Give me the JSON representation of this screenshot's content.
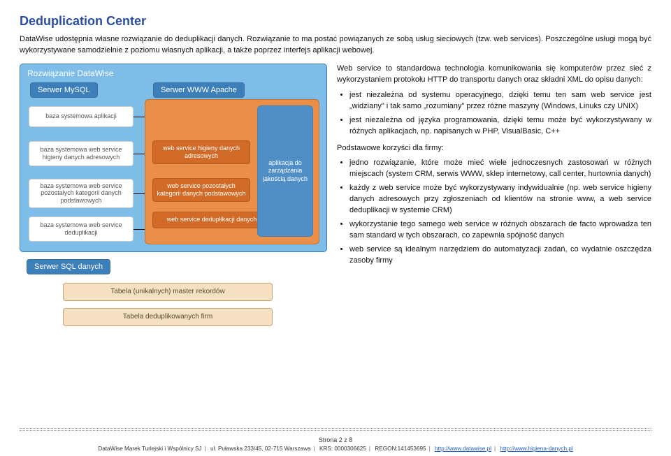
{
  "title": "Deduplication Center",
  "intro1": "DataWise udostępnia własne rozwiązanie do deduplikacji danych. Rozwiązanie to ma postać powiązanych ze sobą usług sieciowych (tzw. web services). Poszczególne usługi mogą być wykorzystywane samodzielnie z poziomu własnych aplikacji, a także poprzez interfejs aplikacji webowej.",
  "diagram": {
    "dw_title": "Rozwiązanie DataWise",
    "srv_mysql": "Serwer MySQL",
    "srv_apache": "Serwer WWW Apache",
    "wb1": "baza systemowa aplikacji",
    "wb2": "baza systemowa web service higieny danych adresowych",
    "wb3": "baza systemowa web service pozostałych kategorii danych podstawowych",
    "wb4": "baza systemowa web service deduplikacji",
    "ob1": "web service higieny danych adresowych",
    "ob2": "web service pozostałych kategorii danych podstawowych",
    "ob3": "web service deduplikacji danych",
    "app": "aplikacja do zarządzania jakością danych",
    "srv_sql": "Serwer SQL danych",
    "tab1": "Tabela (unikalnych) master rekordów",
    "tab2": "Tabela deduplikowanych firm"
  },
  "para_ws": "Web service to standardowa technologia komunikowania się komputerów przez sieć z wykorzystaniem protokołu HTTP do transportu danych oraz składni XML do opisu danych:",
  "bul_ws": [
    "jest niezależna od systemu operacyjnego, dzięki temu ten sam web service jest „widziany\" i tak samo „rozumiany\" przez różne maszyny (Windows, Linuks czy UNIX)",
    "jest niezależna od języka programowania, dzięki temu może być wykorzystywany w różnych aplikacjach, np. napisanych w PHP, VisualBasic, C++"
  ],
  "para_ben": "Podstawowe korzyści dla firmy:",
  "bul_ben": [
    "jedno rozwiązanie, które może mieć wiele jednoczesnych zastosowań w różnych miejscach (system CRM, serwis WWW, sklep internetowy, call center, hurtownia danych)",
    "każdy z web service może być wykorzystywany indywidualnie (np. web service higieny danych adresowych przy zgłoszeniach od klientów na stronie www, a web service deduplikacji w systemie CRM)",
    "wykorzystanie tego samego web service w różnych obszarach de facto wprowadza ten sam standard w tych obszarach, co zapewnia spójność danych",
    "web service są idealnym narzędziem do automatyzacji zadań, co wydatnie oszczędza zasoby firmy"
  ],
  "footer": {
    "page": "Strona 2 z 8",
    "co": "DataWise Marek Turlejski i Wspólnicy SJ",
    "addr": "ul. Puławska 233/45, 02-715 Warszawa",
    "krs": "KRS: 0000306625",
    "regon": "REGON:141453695",
    "url1": "http://www.datawise.pl",
    "url2": "http://www.higiena-danych.pl"
  }
}
